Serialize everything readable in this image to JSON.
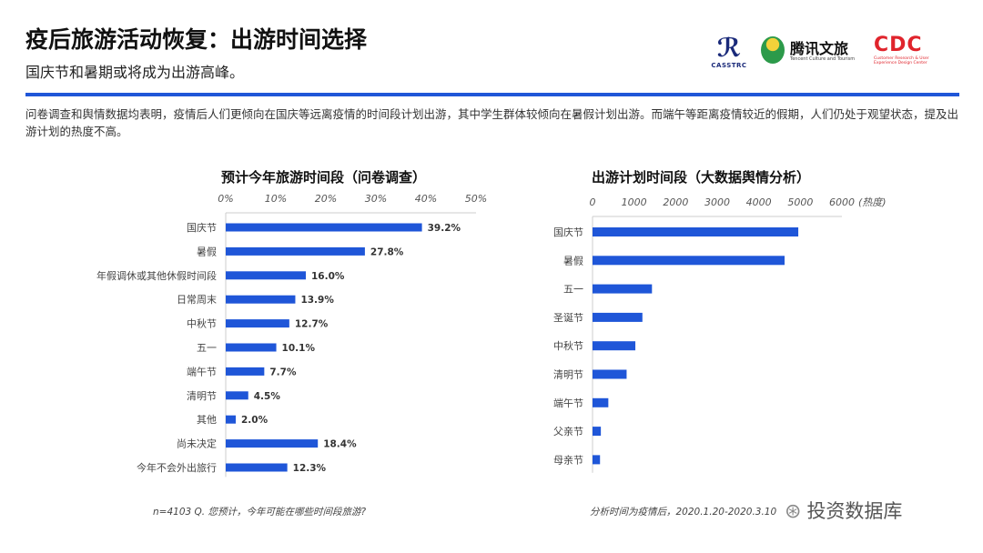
{
  "header": {
    "title": "疫后旅游活动恢复：出游时间选择",
    "subtitle": "国庆节和暑期或将成为出游高峰。",
    "description": "问卷调查和舆情数据均表明，疫情后人们更倾向在国庆等远离疫情的时间段计划出游，其中学生群体较倾向在暑假计划出游。而端午等距离疫情较近的假期，人们仍处于观望状态，提及出游计划的热度不高。"
  },
  "logos": {
    "casstrc": "CASSTRC",
    "tencent_name": "腾讯文旅",
    "tencent_sub": "Tencent Culture and Tourism",
    "cdc_name": "CDC",
    "cdc_sub": "Customer Research & User Experience Design Center"
  },
  "colors": {
    "accent": "#1f56d8",
    "bar": "#1f56d8"
  },
  "chart_data": [
    {
      "type": "bar",
      "orientation": "horizontal",
      "title": "预计今年旅游时间段（问卷调查）",
      "categories": [
        "国庆节",
        "暑假",
        "年假调休或其他休假时间段",
        "日常周末",
        "中秋节",
        "五一",
        "端午节",
        "清明节",
        "其他",
        "尚未决定",
        "今年不会外出旅行"
      ],
      "values": [
        39.2,
        27.8,
        16.0,
        13.9,
        12.7,
        10.1,
        7.7,
        4.5,
        2.0,
        18.4,
        12.3
      ],
      "value_labels": [
        "39.2%",
        "27.8%",
        "16.0%",
        "13.9%",
        "12.7%",
        "10.1%",
        "7.7%",
        "4.5%",
        "2.0%",
        "18.4%",
        "12.3%"
      ],
      "xlim": [
        0,
        50
      ],
      "ticks": [
        "0%",
        "10%",
        "20%",
        "30%",
        "40%",
        "50%"
      ],
      "axis_position": "top",
      "note": "n=4103   Q. 您预计，今年可能在哪些时间段旅游?"
    },
    {
      "type": "bar",
      "orientation": "horizontal",
      "title": "出游计划时间段（大数据舆情分析）",
      "categories": [
        "国庆节",
        "暑假",
        "五一",
        "圣诞节",
        "中秋节",
        "清明节",
        "端午节",
        "父亲节",
        "母亲节"
      ],
      "values": [
        4950,
        4620,
        1430,
        1200,
        1030,
        820,
        380,
        200,
        180
      ],
      "xlim": [
        0,
        6000
      ],
      "ticks": [
        "0",
        "1000",
        "2000",
        "3000",
        "4000",
        "5000",
        "6000"
      ],
      "unit_label": "(热度)",
      "axis_position": "top",
      "note": "分析时间为疫情后，2020.1.20-2020.3.10"
    }
  ],
  "watermark": "投资数据库"
}
